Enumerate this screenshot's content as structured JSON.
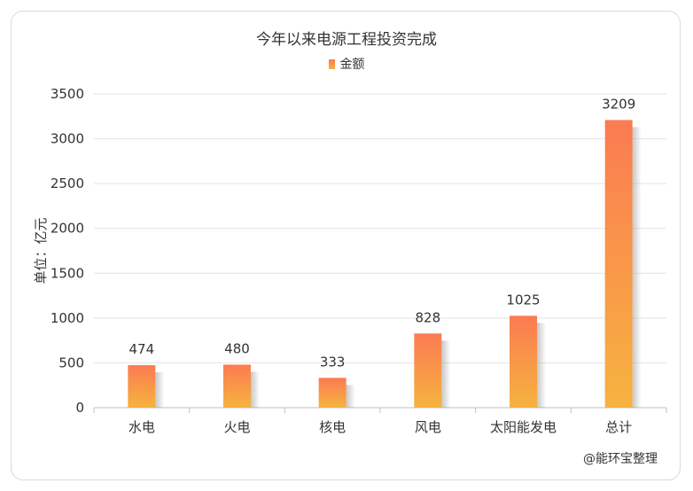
{
  "chart_data": {
    "type": "bar",
    "title": "今年以来电源工程投资完成",
    "legend": [
      "金额"
    ],
    "ylabel": "单位：亿元",
    "categories": [
      "水电",
      "火电",
      "核电",
      "风电",
      "太阳能发电",
      "总计"
    ],
    "series": [
      {
        "name": "金额",
        "values": [
          474,
          480,
          333,
          828,
          1025,
          3209
        ]
      }
    ],
    "ylim": [
      0,
      3500
    ],
    "yticks": [
      0,
      500,
      1000,
      1500,
      2000,
      2500,
      3000,
      3500
    ],
    "grid": true,
    "legend_position": "top-center",
    "colors": {
      "bar_top": "#fb7b52",
      "bar_bottom": "#f6b33f",
      "grid": "#e3e3e3",
      "axis": "#bfbfbf"
    }
  },
  "credit": "@能环宝整理"
}
